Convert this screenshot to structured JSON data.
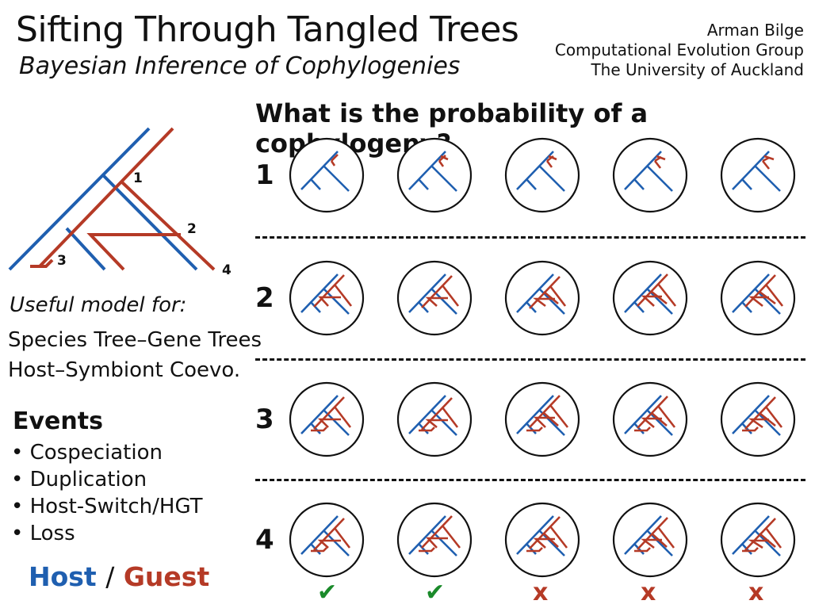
{
  "header": {
    "title": "Sifting Through Tangled Trees",
    "subtitle": "Bayesian Inference of Cophylogenies",
    "author_lines": [
      "Arman Bilge",
      "Computational Evolution Group",
      "The University of Auckland"
    ]
  },
  "question": "What is the probability of a cophylogeny?",
  "tree_labels": [
    "1",
    "2",
    "3",
    "4"
  ],
  "useful_heading": "Useful model for:",
  "uses": [
    "Species Tree–Gene Trees",
    "Host–Symbiont Coevo."
  ],
  "events_heading": "Events",
  "events": [
    "• Cospeciation",
    "• Duplication",
    "• Host-Switch/HGT",
    "• Loss"
  ],
  "legend": {
    "host": "Host",
    "separator": "/",
    "guest": "Guest"
  },
  "colors": {
    "host": "#1f5fb0",
    "guest": "#b53a26",
    "check": "#1a8a2a"
  },
  "rows": [
    "1",
    "2",
    "3",
    "4"
  ],
  "verdicts": [
    {
      "symbol": "✔",
      "valid": true
    },
    {
      "symbol": "✔",
      "valid": true
    },
    {
      "symbol": "x",
      "valid": false
    },
    {
      "symbol": "x",
      "valid": false
    },
    {
      "symbol": "x",
      "valid": false
    }
  ]
}
